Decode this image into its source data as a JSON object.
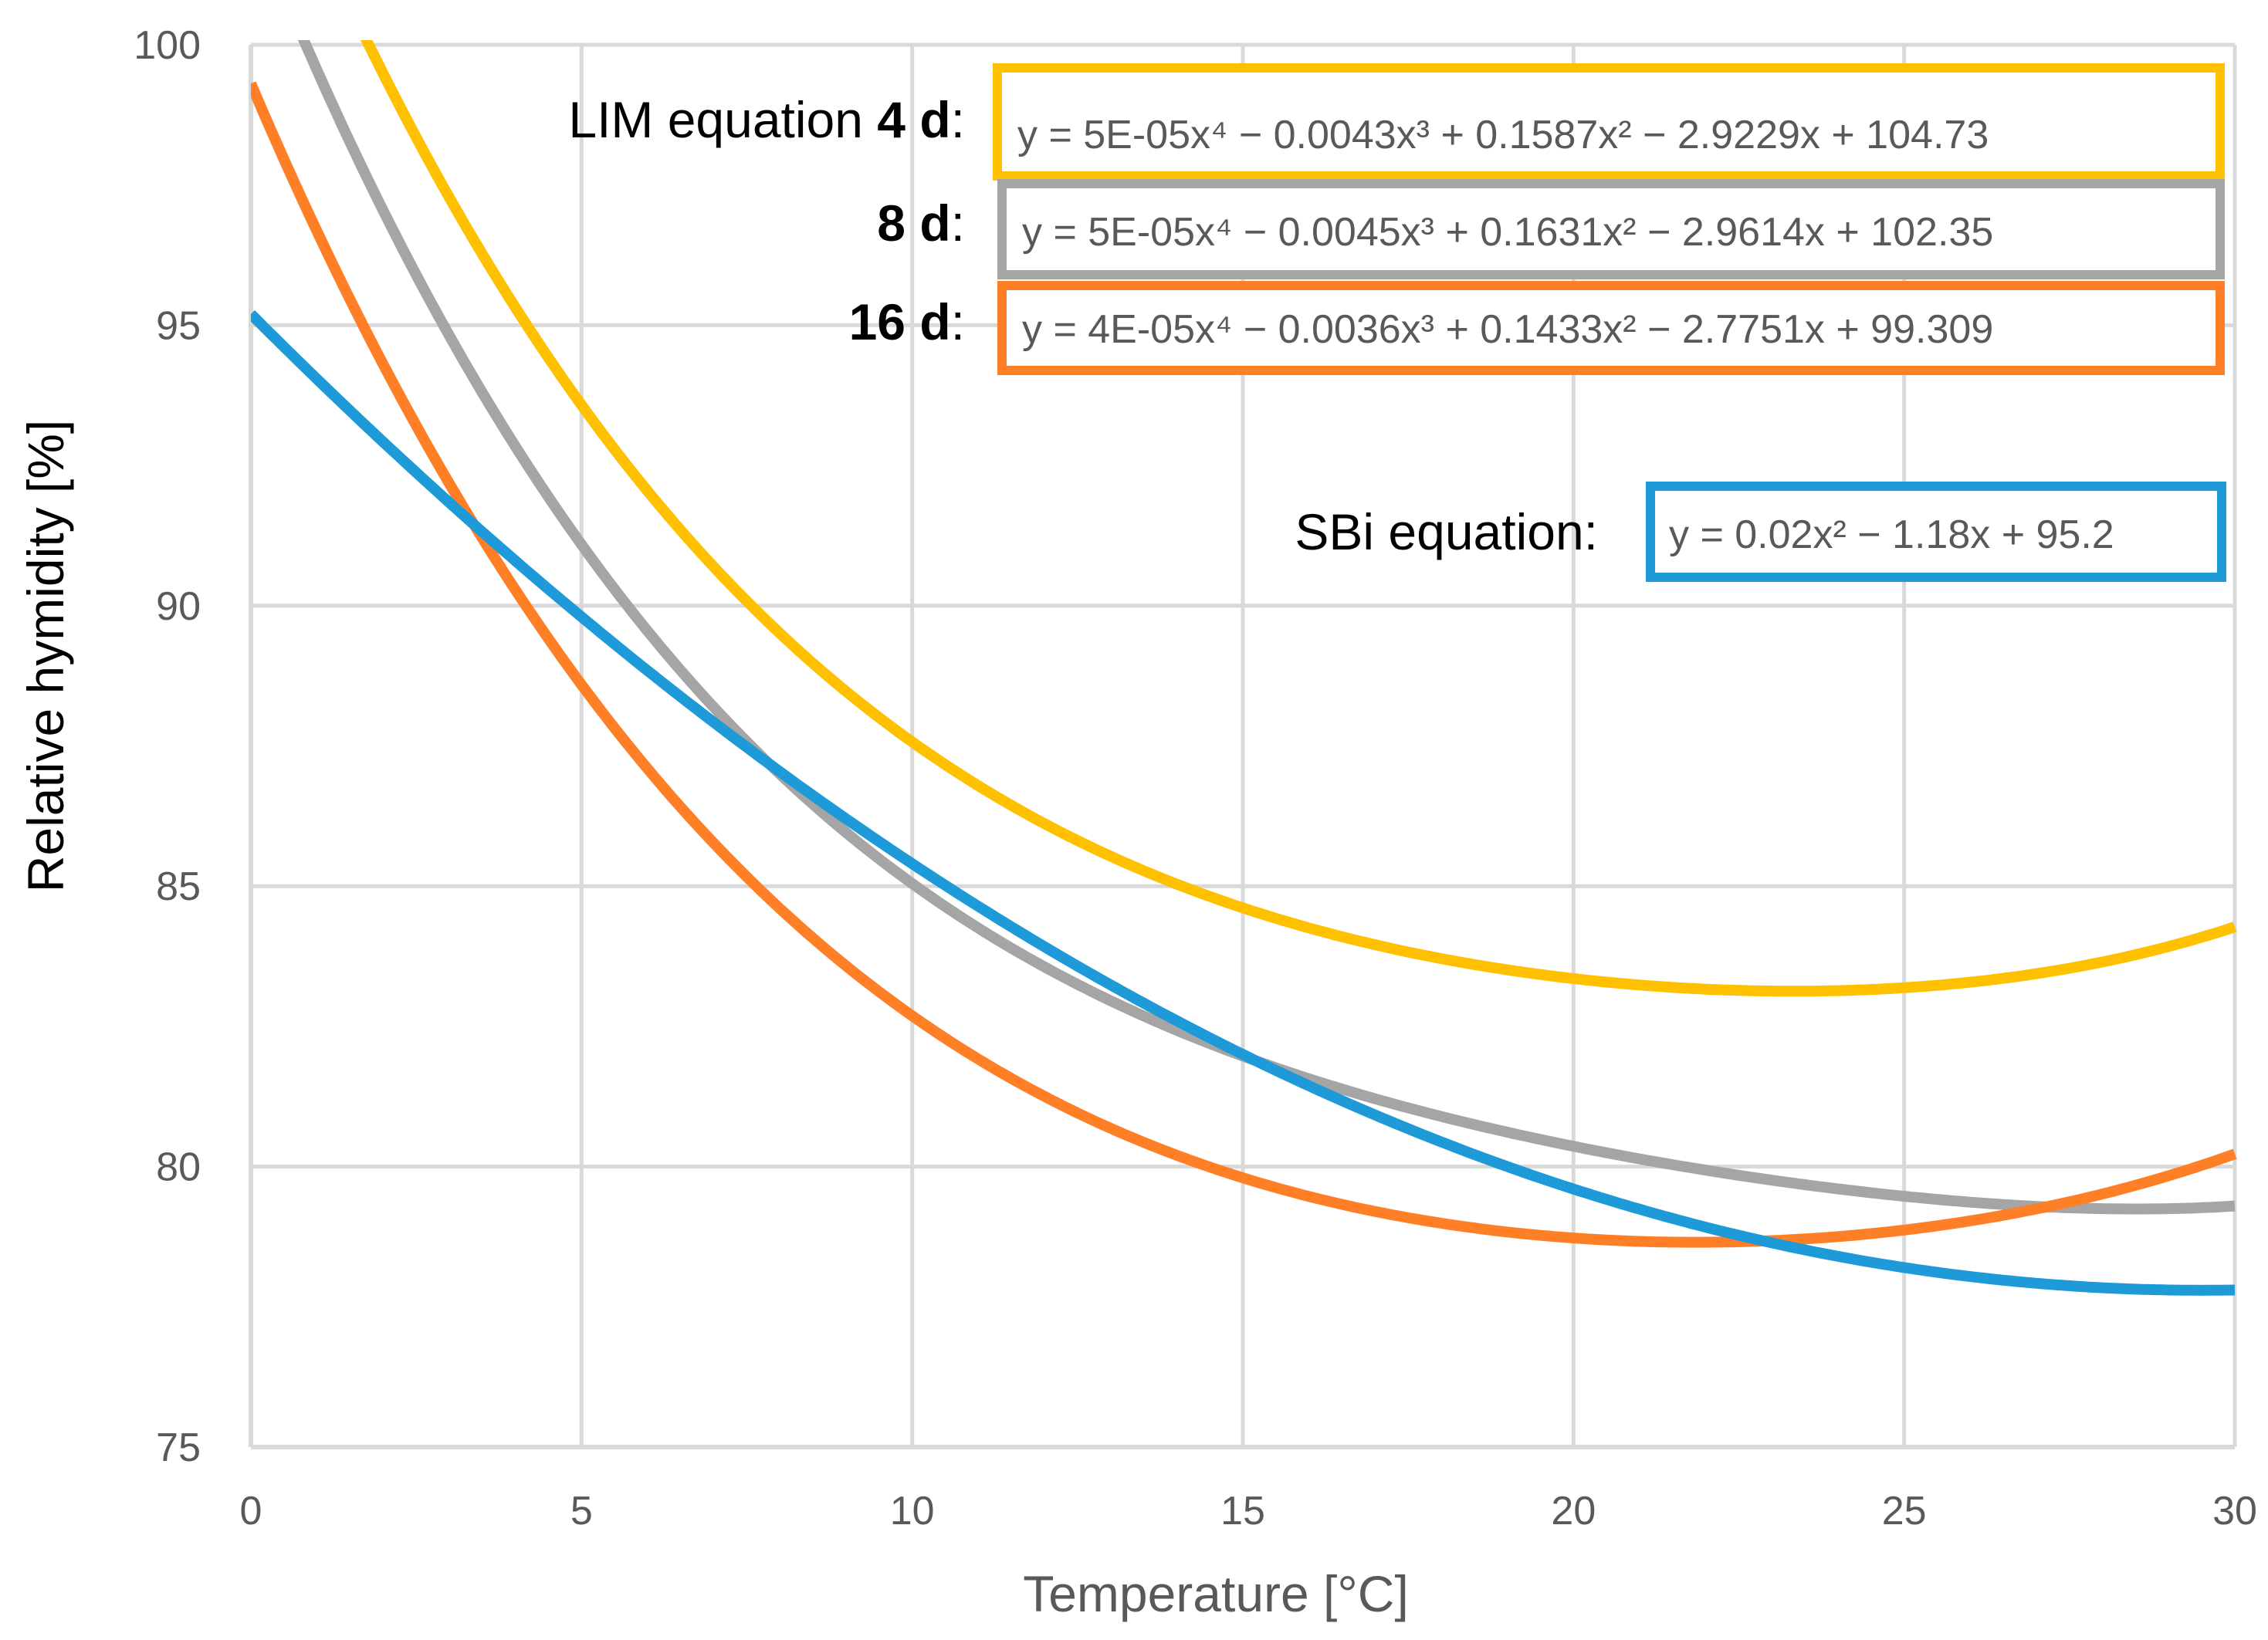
{
  "chart_data": {
    "type": "line",
    "title": "",
    "xlabel": "Temperature [°C]",
    "ylabel": "Relative hymidity [%]",
    "xlim": [
      0,
      30
    ],
    "ylim": [
      75,
      100
    ],
    "x_ticks": [
      0,
      5,
      10,
      15,
      20,
      25,
      30
    ],
    "y_ticks": [
      75,
      80,
      85,
      90,
      95,
      100
    ],
    "x_tick_labels": [
      "0",
      "5",
      "10",
      "15",
      "20",
      "25",
      "30"
    ],
    "y_tick_labels": [
      "75",
      "80",
      "85",
      "90",
      "95",
      "100"
    ],
    "grid": true,
    "series": [
      {
        "name": "LIM 4 d",
        "color": "#FFC000",
        "coefficients": [
          5e-05,
          -0.0043,
          0.1587,
          -2.9229,
          104.73
        ],
        "equation": "y = 5E-05x⁴ − 0.0043x³ + 0.1587x² − 2.9229x + 104.73"
      },
      {
        "name": "LIM 8 d",
        "color": "#A5A5A5",
        "coefficients": [
          5e-05,
          -0.0045,
          0.1631,
          -2.9614,
          102.35
        ],
        "equation": "y = 5E-05x⁴ − 0.0045x³ + 0.1631x² − 2.9614x + 102.35"
      },
      {
        "name": "LIM 16 d",
        "color": "#FF7F27",
        "coefficients": [
          4e-05,
          -0.0036,
          0.1433,
          -2.7751,
          99.309
        ],
        "equation": "y = 4E-05x⁴ − 0.0036x³ + 0.1433x² − 2.7751x + 99.309"
      },
      {
        "name": "SBi",
        "color": "#1E9AD8",
        "coefficients": [
          0,
          0,
          0.02,
          -1.18,
          95.2
        ],
        "equation": "y = 0.02x² − 1.18x + 95.2"
      }
    ],
    "annotations": {
      "lim_prefix": "LIM equation ",
      "lim_4d": "4 d",
      "lim_8d": "8 d",
      "lim_16d": "16 d",
      "colon": ":",
      "sbi_label": "SBi equation:"
    }
  }
}
